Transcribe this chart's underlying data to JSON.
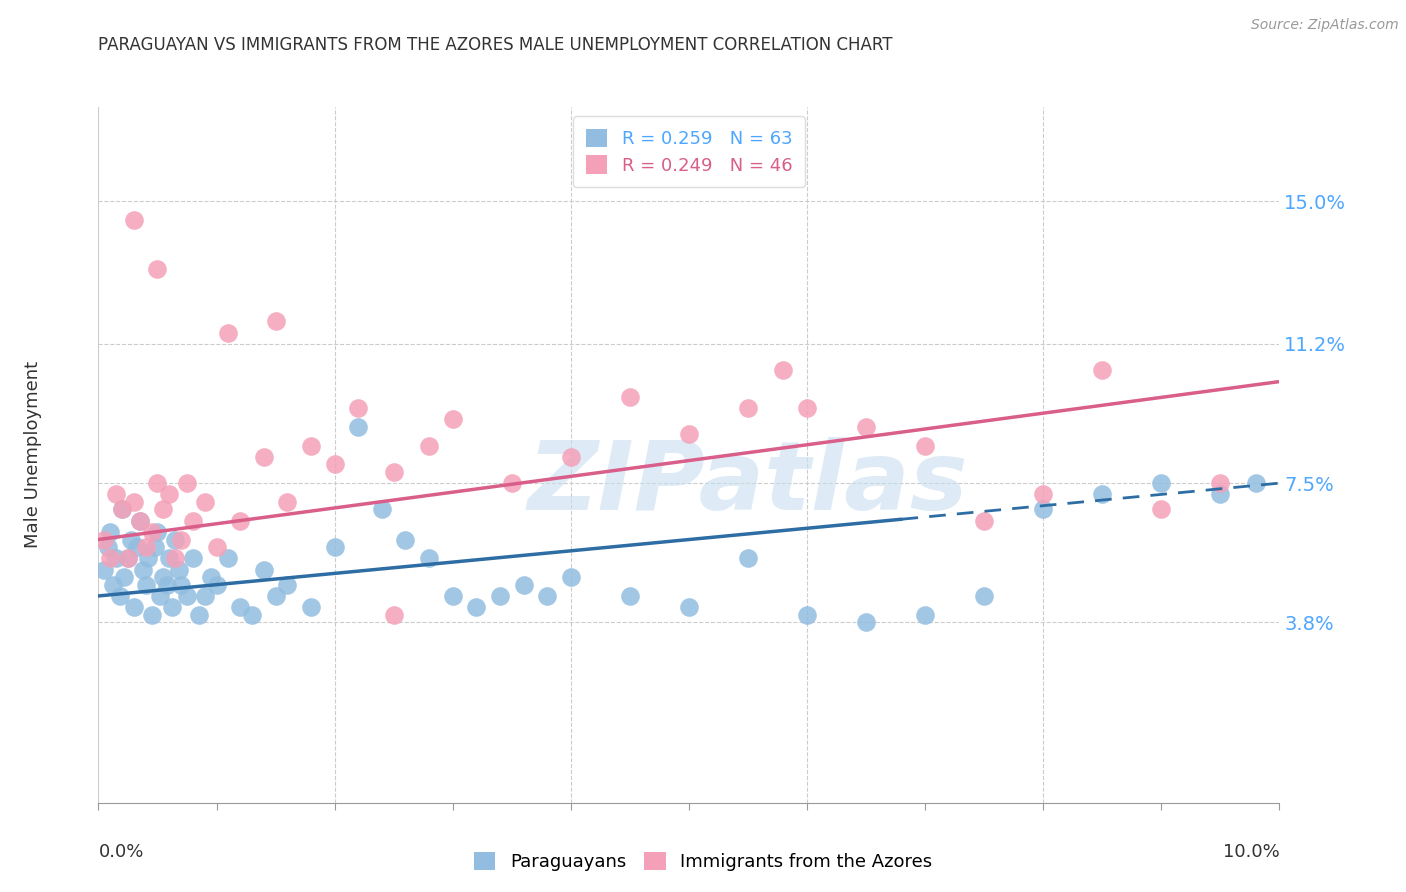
{
  "title": "PARAGUAYAN VS IMMIGRANTS FROM THE AZORES MALE UNEMPLOYMENT CORRELATION CHART",
  "source": "Source: ZipAtlas.com",
  "ylabel": "Male Unemployment",
  "ytick_labels": [
    "3.8%",
    "7.5%",
    "11.2%",
    "15.0%"
  ],
  "ytick_values": [
    3.8,
    7.5,
    11.2,
    15.0
  ],
  "xlim": [
    0.0,
    10.0
  ],
  "ylim": [
    -1.0,
    17.5
  ],
  "legend_label_blue": "Paraguayans",
  "legend_label_pink": "Immigrants from the Azores",
  "color_blue": "#92bde0",
  "color_pink": "#f4a0b8",
  "color_line_blue": "#2e6da4",
  "color_line_pink": "#d95f8a",
  "watermark_text": "ZIPatlas",
  "blue_line_x0": 0.0,
  "blue_line_y0": 4.5,
  "blue_line_x1": 10.0,
  "blue_line_y1": 7.5,
  "blue_line_solid_end": 6.8,
  "pink_line_x0": 0.0,
  "pink_line_y0": 6.0,
  "pink_line_x1": 10.0,
  "pink_line_y1": 10.2,
  "paraguayan_x": [
    0.05,
    0.08,
    0.1,
    0.12,
    0.15,
    0.18,
    0.2,
    0.22,
    0.25,
    0.28,
    0.3,
    0.33,
    0.35,
    0.38,
    0.4,
    0.42,
    0.45,
    0.48,
    0.5,
    0.52,
    0.55,
    0.58,
    0.6,
    0.62,
    0.65,
    0.68,
    0.7,
    0.75,
    0.8,
    0.85,
    0.9,
    0.95,
    1.0,
    1.1,
    1.2,
    1.3,
    1.4,
    1.5,
    1.6,
    1.8,
    2.0,
    2.2,
    2.4,
    2.6,
    2.8,
    3.0,
    3.2,
    3.4,
    3.6,
    3.8,
    4.0,
    4.5,
    5.0,
    5.5,
    6.0,
    6.5,
    7.0,
    7.5,
    8.0,
    8.5,
    9.0,
    9.5,
    9.8
  ],
  "paraguayan_y": [
    5.2,
    5.8,
    6.2,
    4.8,
    5.5,
    4.5,
    6.8,
    5.0,
    5.5,
    6.0,
    4.2,
    5.8,
    6.5,
    5.2,
    4.8,
    5.5,
    4.0,
    5.8,
    6.2,
    4.5,
    5.0,
    4.8,
    5.5,
    4.2,
    6.0,
    5.2,
    4.8,
    4.5,
    5.5,
    4.0,
    4.5,
    5.0,
    4.8,
    5.5,
    4.2,
    4.0,
    5.2,
    4.5,
    4.8,
    4.2,
    5.8,
    9.0,
    6.8,
    6.0,
    5.5,
    4.5,
    4.2,
    4.5,
    4.8,
    4.5,
    5.0,
    4.5,
    4.2,
    5.5,
    4.0,
    3.8,
    4.0,
    4.5,
    6.8,
    7.2,
    7.5,
    7.2,
    7.5
  ],
  "azores_x": [
    0.05,
    0.1,
    0.15,
    0.2,
    0.25,
    0.3,
    0.35,
    0.4,
    0.45,
    0.5,
    0.55,
    0.6,
    0.65,
    0.7,
    0.75,
    0.8,
    0.9,
    1.0,
    1.2,
    1.4,
    1.6,
    1.8,
    2.0,
    2.2,
    2.5,
    2.8,
    3.0,
    3.5,
    4.0,
    4.5,
    5.0,
    5.5,
    5.8,
    6.0,
    6.5,
    7.0,
    7.5,
    8.0,
    8.5,
    9.0,
    9.5,
    0.3,
    0.5,
    1.1,
    1.5,
    2.5
  ],
  "azores_y": [
    6.0,
    5.5,
    7.2,
    6.8,
    5.5,
    7.0,
    6.5,
    5.8,
    6.2,
    7.5,
    6.8,
    7.2,
    5.5,
    6.0,
    7.5,
    6.5,
    7.0,
    5.8,
    6.5,
    8.2,
    7.0,
    8.5,
    8.0,
    9.5,
    7.8,
    8.5,
    9.2,
    7.5,
    8.2,
    9.8,
    8.8,
    9.5,
    10.5,
    9.5,
    9.0,
    8.5,
    6.5,
    7.2,
    10.5,
    6.8,
    7.5,
    14.5,
    13.2,
    11.5,
    11.8,
    4.0
  ]
}
